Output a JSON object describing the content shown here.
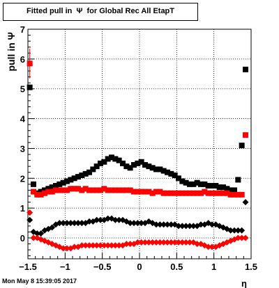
{
  "chart_data": {
    "type": "scatter",
    "title": "Fitted pull in  Ψ  for Global Rec All EtapT",
    "xlabel": "η",
    "ylabel": "pull in  Ψ",
    "xlim": [
      -1.5,
      1.5
    ],
    "ylim": [
      -0.7,
      7.0
    ],
    "x_ticks": [
      -1.5,
      -1,
      -0.5,
      0,
      0.5,
      1,
      1.5
    ],
    "x_tick_labels": [
      "−1.5",
      "−1",
      "−0.5",
      "0",
      "0.5",
      "1",
      "1.5"
    ],
    "y_ticks": [
      0,
      1,
      2,
      3,
      4,
      5,
      6,
      7
    ],
    "y_tick_labels": [
      "0",
      "1",
      "2",
      "3",
      "4",
      "5",
      "6",
      "7"
    ],
    "grid": true,
    "x": [
      -1.475,
      -1.425,
      -1.375,
      -1.325,
      -1.275,
      -1.225,
      -1.175,
      -1.125,
      -1.075,
      -1.025,
      -0.975,
      -0.925,
      -0.875,
      -0.825,
      -0.775,
      -0.725,
      -0.675,
      -0.625,
      -0.575,
      -0.525,
      -0.475,
      -0.425,
      -0.375,
      -0.325,
      -0.275,
      -0.225,
      -0.175,
      -0.125,
      -0.075,
      -0.025,
      0.025,
      0.075,
      0.125,
      0.175,
      0.225,
      0.275,
      0.325,
      0.375,
      0.425,
      0.475,
      0.525,
      0.575,
      0.625,
      0.675,
      0.725,
      0.775,
      0.825,
      0.875,
      0.925,
      0.975,
      1.025,
      1.075,
      1.125,
      1.175,
      1.225,
      1.275,
      1.325,
      1.375,
      1.425,
      1.475
    ],
    "series": [
      {
        "color": "#000000",
        "marker": "square",
        "values": [
          5.05,
          1.8,
          1.5,
          1.55,
          1.6,
          1.65,
          1.7,
          1.75,
          1.8,
          1.85,
          1.9,
          1.95,
          2.0,
          2.05,
          2.1,
          2.15,
          2.2,
          2.3,
          2.4,
          2.5,
          2.55,
          2.65,
          2.7,
          2.65,
          2.6,
          2.5,
          2.4,
          2.35,
          2.45,
          2.5,
          2.55,
          2.45,
          2.4,
          2.35,
          2.3,
          2.3,
          2.25,
          2.2,
          2.15,
          2.1,
          2.0,
          1.9,
          1.85,
          1.8,
          1.8,
          1.85,
          1.8,
          1.8,
          1.75,
          1.75,
          1.75,
          1.7,
          1.7,
          1.65,
          1.6,
          1.6,
          1.95,
          3.1,
          5.65,
          null
        ]
      },
      {
        "color": "#ff0000",
        "marker": "square",
        "values": [
          5.85,
          1.55,
          1.45,
          1.45,
          1.5,
          1.55,
          1.55,
          1.6,
          1.6,
          1.6,
          1.6,
          1.65,
          1.65,
          1.65,
          1.6,
          1.65,
          1.6,
          1.6,
          1.6,
          1.6,
          1.65,
          1.6,
          1.6,
          1.6,
          1.6,
          1.6,
          1.6,
          1.6,
          1.55,
          1.55,
          1.55,
          1.55,
          1.55,
          1.5,
          1.55,
          1.55,
          1.5,
          1.5,
          1.5,
          1.5,
          1.5,
          1.5,
          1.5,
          1.5,
          1.5,
          1.5,
          1.5,
          1.55,
          1.5,
          1.5,
          1.5,
          1.5,
          1.5,
          1.5,
          1.45,
          1.45,
          1.45,
          1.45,
          3.45,
          null
        ]
      },
      {
        "color": "#000000",
        "marker": "diamond",
        "values": [
          0.6,
          0.2,
          0.15,
          0.15,
          0.25,
          0.3,
          0.35,
          0.45,
          0.5,
          0.5,
          0.5,
          0.5,
          0.5,
          0.5,
          0.5,
          0.5,
          0.55,
          0.55,
          0.6,
          0.6,
          0.6,
          0.65,
          0.65,
          0.6,
          0.6,
          0.6,
          0.55,
          0.5,
          0.5,
          0.5,
          0.5,
          0.5,
          0.55,
          0.5,
          0.45,
          0.45,
          0.45,
          0.45,
          0.45,
          0.45,
          0.4,
          0.4,
          0.4,
          0.4,
          0.4,
          0.4,
          0.45,
          0.45,
          0.5,
          0.45,
          0.45,
          0.4,
          0.35,
          0.3,
          0.25,
          0.25,
          0.25,
          0.25,
          1.2,
          null
        ]
      },
      {
        "color": "#ff0000",
        "marker": "diamond",
        "values": [
          0.85,
          0.0,
          0.0,
          -0.05,
          -0.1,
          -0.15,
          -0.2,
          -0.25,
          -0.3,
          -0.35,
          -0.35,
          -0.35,
          -0.3,
          -0.3,
          -0.25,
          -0.25,
          -0.25,
          -0.25,
          -0.25,
          -0.25,
          -0.25,
          -0.25,
          -0.25,
          -0.25,
          -0.25,
          -0.25,
          -0.2,
          -0.2,
          -0.2,
          -0.15,
          -0.15,
          -0.15,
          -0.15,
          -0.15,
          -0.15,
          -0.15,
          -0.15,
          -0.15,
          -0.15,
          -0.15,
          -0.15,
          -0.15,
          -0.15,
          -0.15,
          -0.15,
          -0.2,
          -0.2,
          -0.25,
          -0.3,
          -0.3,
          -0.3,
          -0.25,
          -0.2,
          -0.15,
          -0.1,
          -0.05,
          0.0,
          0.0,
          0.0,
          null
        ]
      }
    ]
  },
  "footer": {
    "timestamp": "Mon May  8 15:39:05 2017"
  }
}
